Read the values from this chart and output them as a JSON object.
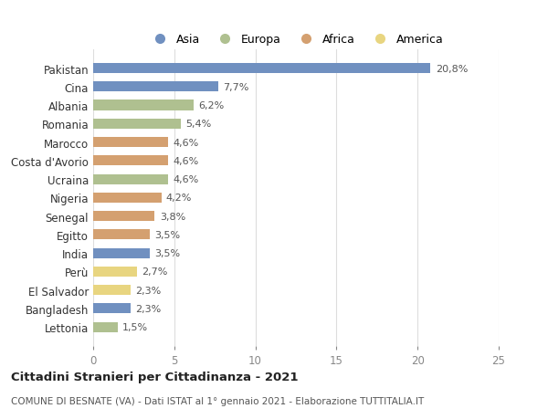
{
  "countries": [
    "Pakistan",
    "Cina",
    "Albania",
    "Romania",
    "Marocco",
    "Costa d'Avorio",
    "Ucraina",
    "Nigeria",
    "Senegal",
    "Egitto",
    "India",
    "Perù",
    "El Salvador",
    "Bangladesh",
    "Lettonia"
  ],
  "values": [
    20.8,
    7.7,
    6.2,
    5.4,
    4.6,
    4.6,
    4.6,
    4.2,
    3.8,
    3.5,
    3.5,
    2.7,
    2.3,
    2.3,
    1.5
  ],
  "labels": [
    "20,8%",
    "7,7%",
    "6,2%",
    "5,4%",
    "4,6%",
    "4,6%",
    "4,6%",
    "4,2%",
    "3,8%",
    "3,5%",
    "3,5%",
    "2,7%",
    "2,3%",
    "2,3%",
    "1,5%"
  ],
  "continents": [
    "Asia",
    "Asia",
    "Europa",
    "Europa",
    "Africa",
    "Africa",
    "Europa",
    "Africa",
    "Africa",
    "Africa",
    "Asia",
    "America",
    "America",
    "Asia",
    "Europa"
  ],
  "colors": {
    "Asia": "#7090c0",
    "Europa": "#afc090",
    "Africa": "#d4a070",
    "America": "#e8d580"
  },
  "xlim": [
    0,
    25
  ],
  "xticks": [
    0,
    5,
    10,
    15,
    20,
    25
  ],
  "title": "Cittadini Stranieri per Cittadinanza - 2021",
  "subtitle": "COMUNE DI BESNATE (VA) - Dati ISTAT al 1° gennaio 2021 - Elaborazione TUTTITALIA.IT",
  "bg_color": "#ffffff",
  "bar_height": 0.55,
  "legend_order": [
    "Asia",
    "Europa",
    "Africa",
    "America"
  ]
}
